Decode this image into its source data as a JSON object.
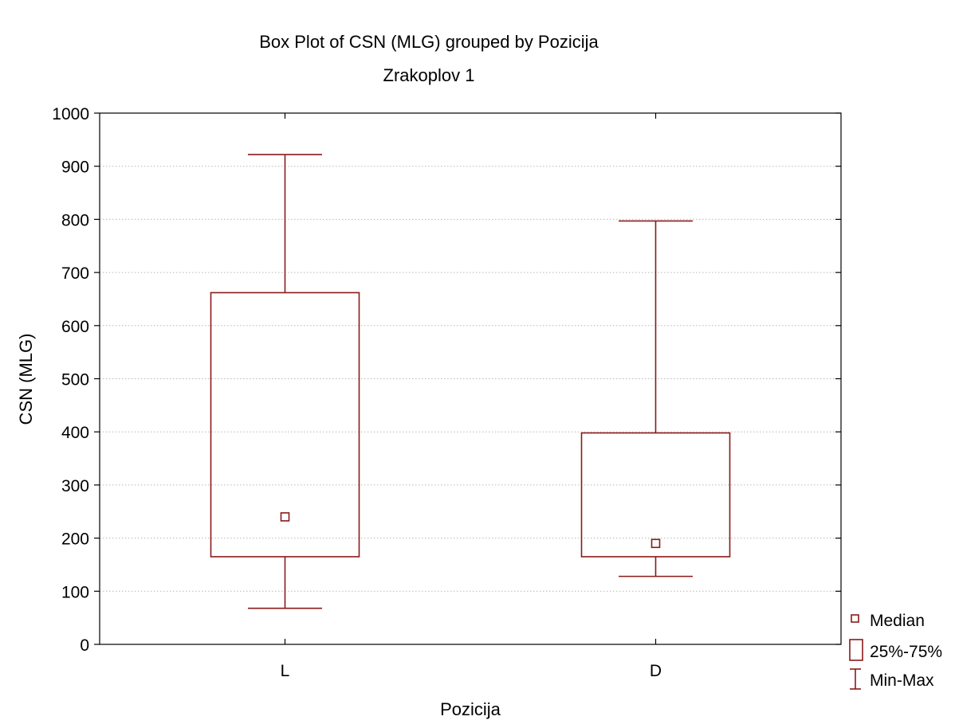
{
  "chart_data": {
    "type": "box",
    "title": "Box Plot of CSN (MLG) grouped by  Pozicija",
    "subtitle": "Zrakoplov 1",
    "xlabel": "Pozicija",
    "ylabel": "CSN (MLG)",
    "ylim": [
      0,
      1000
    ],
    "yticks": [
      0,
      100,
      200,
      300,
      400,
      500,
      600,
      700,
      800,
      900,
      1000
    ],
    "grid": true,
    "legend_position": "bottom-right",
    "categories": [
      "L",
      "D"
    ],
    "boxes": [
      {
        "category": "L",
        "min": 68,
        "q1": 165,
        "median": 240,
        "q3": 662,
        "max": 922
      },
      {
        "category": "D",
        "min": 128,
        "q1": 165,
        "median": 190,
        "q3": 398,
        "max": 797
      }
    ],
    "legend": {
      "median": "Median",
      "box": "25%-75%",
      "whisker": "Min-Max"
    },
    "color": "#8b1a1a"
  }
}
